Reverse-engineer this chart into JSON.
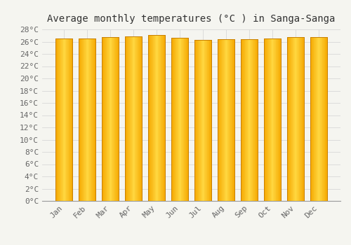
{
  "title": "Average monthly temperatures (°C ) in Sanga-Sanga",
  "months": [
    "Jan",
    "Feb",
    "Mar",
    "Apr",
    "May",
    "Jun",
    "Jul",
    "Aug",
    "Sep",
    "Oct",
    "Nov",
    "Dec"
  ],
  "values": [
    26.5,
    26.5,
    26.8,
    26.9,
    27.1,
    26.6,
    26.3,
    26.4,
    26.4,
    26.5,
    26.8,
    26.7
  ],
  "bar_color_center": "#FFD740",
  "bar_color_edge": "#F5A800",
  "bar_outline_color": "#C88000",
  "background_color": "#F5F5F0",
  "grid_color": "#D8D8D8",
  "ylim": [
    0,
    28
  ],
  "ytick_step": 2,
  "title_fontsize": 10,
  "tick_fontsize": 8,
  "tick_font": "monospace"
}
